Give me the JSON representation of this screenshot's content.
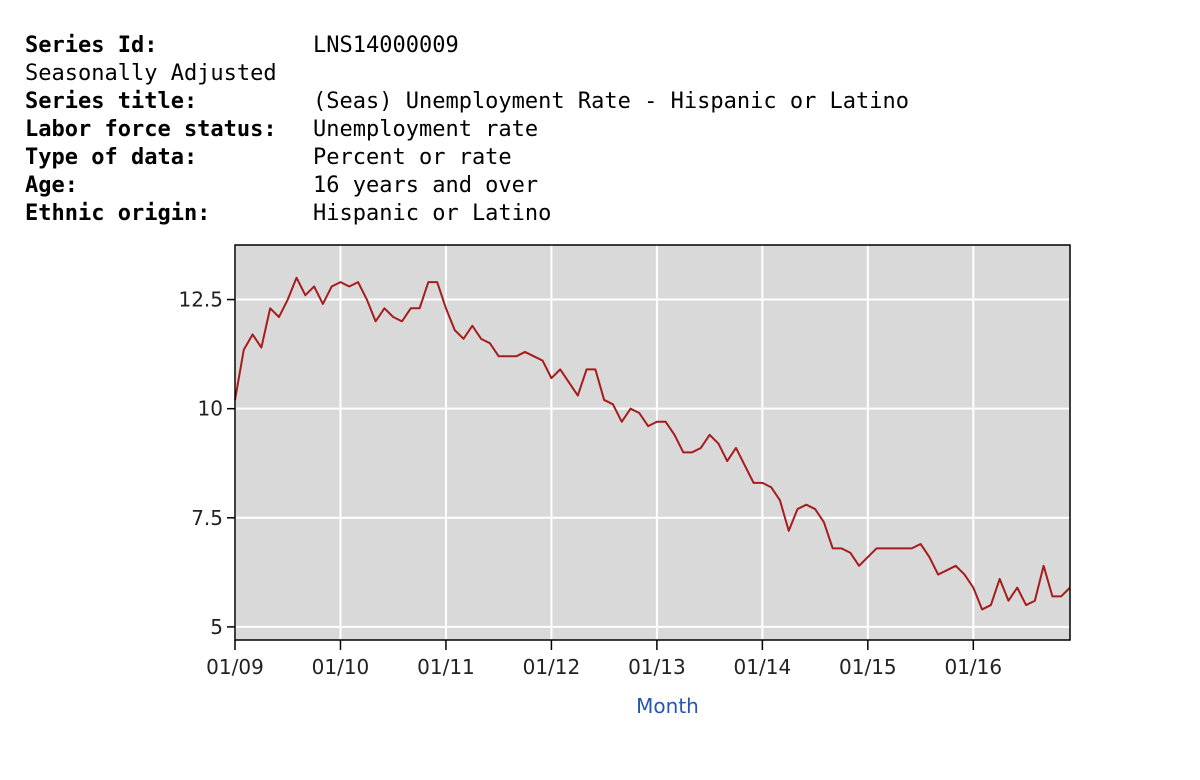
{
  "header": {
    "lines": [
      {
        "label": "Series Id:",
        "value": "LNS14000009"
      },
      {
        "text": "Seasonally Adjusted"
      },
      {
        "label": "Series title:",
        "value": "(Seas) Unemployment Rate - Hispanic or Latino"
      },
      {
        "label": "Labor force status:",
        "value": "Unemployment rate"
      },
      {
        "label": "Type of data:",
        "value": "Percent or rate"
      },
      {
        "label": "Age:",
        "value": "16 years and over"
      },
      {
        "label": "Ethnic origin:",
        "value": "Hispanic or Latino"
      }
    ]
  },
  "chart_data": {
    "type": "line",
    "xlabel": "Month",
    "categories": [
      "01/09",
      "02/09",
      "03/09",
      "04/09",
      "05/09",
      "06/09",
      "07/09",
      "08/09",
      "09/09",
      "10/09",
      "11/09",
      "12/09",
      "01/10",
      "02/10",
      "03/10",
      "04/10",
      "05/10",
      "06/10",
      "07/10",
      "08/10",
      "09/10",
      "10/10",
      "11/10",
      "12/10",
      "01/11",
      "02/11",
      "03/11",
      "04/11",
      "05/11",
      "06/11",
      "07/11",
      "08/11",
      "09/11",
      "10/11",
      "11/11",
      "12/11",
      "01/12",
      "02/12",
      "03/12",
      "04/12",
      "05/12",
      "06/12",
      "07/12",
      "08/12",
      "09/12",
      "10/12",
      "11/12",
      "12/12",
      "01/13",
      "02/13",
      "03/13",
      "04/13",
      "05/13",
      "06/13",
      "07/13",
      "08/13",
      "09/13",
      "10/13",
      "11/13",
      "12/13",
      "01/14",
      "02/14",
      "03/14",
      "04/14",
      "05/14",
      "06/14",
      "07/14",
      "08/14",
      "09/14",
      "10/14",
      "11/14",
      "12/14",
      "01/15",
      "02/15",
      "03/15",
      "04/15",
      "05/15",
      "06/15",
      "07/15",
      "08/15",
      "09/15",
      "10/15",
      "11/15",
      "12/15",
      "01/16",
      "02/16",
      "03/16",
      "04/16",
      "05/16",
      "06/16",
      "07/16",
      "08/16",
      "09/16",
      "10/16",
      "11/16",
      "12/16"
    ],
    "series": [
      {
        "name": "LNS14000009",
        "color": "#a61c1c",
        "values": [
          10.2,
          11.35,
          11.7,
          11.4,
          12.3,
          12.1,
          12.5,
          13.0,
          12.6,
          12.8,
          12.4,
          12.8,
          12.9,
          12.8,
          12.9,
          12.5,
          12.0,
          12.3,
          12.1,
          12.0,
          12.3,
          12.3,
          12.9,
          12.9,
          12.3,
          11.8,
          11.6,
          11.9,
          11.6,
          11.5,
          11.2,
          11.2,
          11.2,
          11.3,
          11.2,
          11.1,
          10.7,
          10.9,
          10.6,
          10.3,
          10.9,
          10.9,
          10.2,
          10.1,
          9.7,
          10.0,
          9.9,
          9.6,
          9.7,
          9.7,
          9.4,
          9.0,
          9.0,
          9.1,
          9.4,
          9.2,
          8.8,
          9.1,
          8.7,
          8.3,
          8.3,
          8.2,
          7.9,
          7.2,
          7.7,
          7.8,
          7.7,
          7.4,
          6.8,
          6.8,
          6.7,
          6.4,
          6.6,
          6.8,
          6.8,
          6.8,
          6.8,
          6.8,
          6.9,
          6.6,
          6.2,
          6.3,
          6.4,
          6.2,
          5.9,
          5.4,
          5.5,
          6.1,
          5.6,
          5.9,
          5.5,
          5.6,
          6.4,
          5.7,
          5.7,
          5.9
        ]
      }
    ],
    "ylim": [
      4.7,
      13.75
    ],
    "yticks": [
      5,
      7.5,
      10,
      12.5
    ],
    "grid": true,
    "background": "#d9d9d9"
  }
}
